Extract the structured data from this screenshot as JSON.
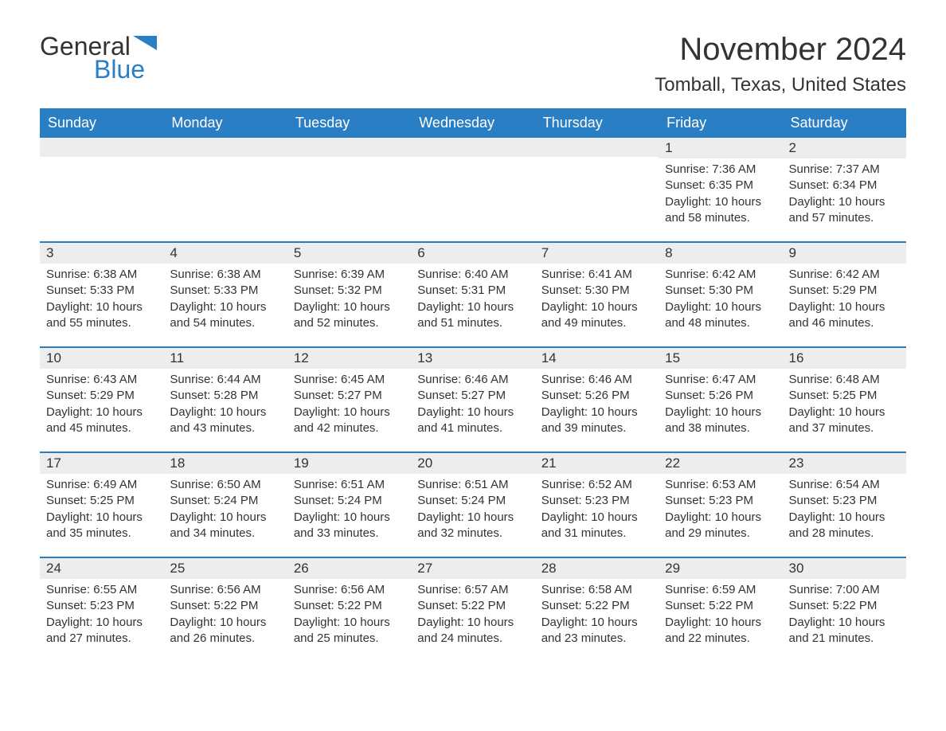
{
  "logo": {
    "text1": "General",
    "text2": "Blue",
    "icon_color": "#2a7ec4"
  },
  "title": {
    "month": "November 2024",
    "location": "Tomball, Texas, United States"
  },
  "styling": {
    "header_bg": "#2a7ec4",
    "header_text_color": "#ffffff",
    "daynum_bg": "#ededed",
    "body_text_color": "#333333",
    "week_border_color": "#2a7ec4",
    "page_bg": "#ffffff",
    "month_title_fontsize": 40,
    "location_fontsize": 24,
    "day_header_fontsize": 18,
    "body_fontsize": 15
  },
  "day_headers": [
    "Sunday",
    "Monday",
    "Tuesday",
    "Wednesday",
    "Thursday",
    "Friday",
    "Saturday"
  ],
  "labels": {
    "sunrise": "Sunrise: ",
    "sunset": "Sunset: ",
    "daylight": "Daylight: "
  },
  "weeks": [
    [
      {
        "empty": true
      },
      {
        "empty": true
      },
      {
        "empty": true
      },
      {
        "empty": true
      },
      {
        "empty": true
      },
      {
        "num": "1",
        "sunrise": "7:36 AM",
        "sunset": "6:35 PM",
        "daylight": "10 hours and 58 minutes."
      },
      {
        "num": "2",
        "sunrise": "7:37 AM",
        "sunset": "6:34 PM",
        "daylight": "10 hours and 57 minutes."
      }
    ],
    [
      {
        "num": "3",
        "sunrise": "6:38 AM",
        "sunset": "5:33 PM",
        "daylight": "10 hours and 55 minutes."
      },
      {
        "num": "4",
        "sunrise": "6:38 AM",
        "sunset": "5:33 PM",
        "daylight": "10 hours and 54 minutes."
      },
      {
        "num": "5",
        "sunrise": "6:39 AM",
        "sunset": "5:32 PM",
        "daylight": "10 hours and 52 minutes."
      },
      {
        "num": "6",
        "sunrise": "6:40 AM",
        "sunset": "5:31 PM",
        "daylight": "10 hours and 51 minutes."
      },
      {
        "num": "7",
        "sunrise": "6:41 AM",
        "sunset": "5:30 PM",
        "daylight": "10 hours and 49 minutes."
      },
      {
        "num": "8",
        "sunrise": "6:42 AM",
        "sunset": "5:30 PM",
        "daylight": "10 hours and 48 minutes."
      },
      {
        "num": "9",
        "sunrise": "6:42 AM",
        "sunset": "5:29 PM",
        "daylight": "10 hours and 46 minutes."
      }
    ],
    [
      {
        "num": "10",
        "sunrise": "6:43 AM",
        "sunset": "5:29 PM",
        "daylight": "10 hours and 45 minutes."
      },
      {
        "num": "11",
        "sunrise": "6:44 AM",
        "sunset": "5:28 PM",
        "daylight": "10 hours and 43 minutes."
      },
      {
        "num": "12",
        "sunrise": "6:45 AM",
        "sunset": "5:27 PM",
        "daylight": "10 hours and 42 minutes."
      },
      {
        "num": "13",
        "sunrise": "6:46 AM",
        "sunset": "5:27 PM",
        "daylight": "10 hours and 41 minutes."
      },
      {
        "num": "14",
        "sunrise": "6:46 AM",
        "sunset": "5:26 PM",
        "daylight": "10 hours and 39 minutes."
      },
      {
        "num": "15",
        "sunrise": "6:47 AM",
        "sunset": "5:26 PM",
        "daylight": "10 hours and 38 minutes."
      },
      {
        "num": "16",
        "sunrise": "6:48 AM",
        "sunset": "5:25 PM",
        "daylight": "10 hours and 37 minutes."
      }
    ],
    [
      {
        "num": "17",
        "sunrise": "6:49 AM",
        "sunset": "5:25 PM",
        "daylight": "10 hours and 35 minutes."
      },
      {
        "num": "18",
        "sunrise": "6:50 AM",
        "sunset": "5:24 PM",
        "daylight": "10 hours and 34 minutes."
      },
      {
        "num": "19",
        "sunrise": "6:51 AM",
        "sunset": "5:24 PM",
        "daylight": "10 hours and 33 minutes."
      },
      {
        "num": "20",
        "sunrise": "6:51 AM",
        "sunset": "5:24 PM",
        "daylight": "10 hours and 32 minutes."
      },
      {
        "num": "21",
        "sunrise": "6:52 AM",
        "sunset": "5:23 PM",
        "daylight": "10 hours and 31 minutes."
      },
      {
        "num": "22",
        "sunrise": "6:53 AM",
        "sunset": "5:23 PM",
        "daylight": "10 hours and 29 minutes."
      },
      {
        "num": "23",
        "sunrise": "6:54 AM",
        "sunset": "5:23 PM",
        "daylight": "10 hours and 28 minutes."
      }
    ],
    [
      {
        "num": "24",
        "sunrise": "6:55 AM",
        "sunset": "5:23 PM",
        "daylight": "10 hours and 27 minutes."
      },
      {
        "num": "25",
        "sunrise": "6:56 AM",
        "sunset": "5:22 PM",
        "daylight": "10 hours and 26 minutes."
      },
      {
        "num": "26",
        "sunrise": "6:56 AM",
        "sunset": "5:22 PM",
        "daylight": "10 hours and 25 minutes."
      },
      {
        "num": "27",
        "sunrise": "6:57 AM",
        "sunset": "5:22 PM",
        "daylight": "10 hours and 24 minutes."
      },
      {
        "num": "28",
        "sunrise": "6:58 AM",
        "sunset": "5:22 PM",
        "daylight": "10 hours and 23 minutes."
      },
      {
        "num": "29",
        "sunrise": "6:59 AM",
        "sunset": "5:22 PM",
        "daylight": "10 hours and 22 minutes."
      },
      {
        "num": "30",
        "sunrise": "7:00 AM",
        "sunset": "5:22 PM",
        "daylight": "10 hours and 21 minutes."
      }
    ]
  ]
}
